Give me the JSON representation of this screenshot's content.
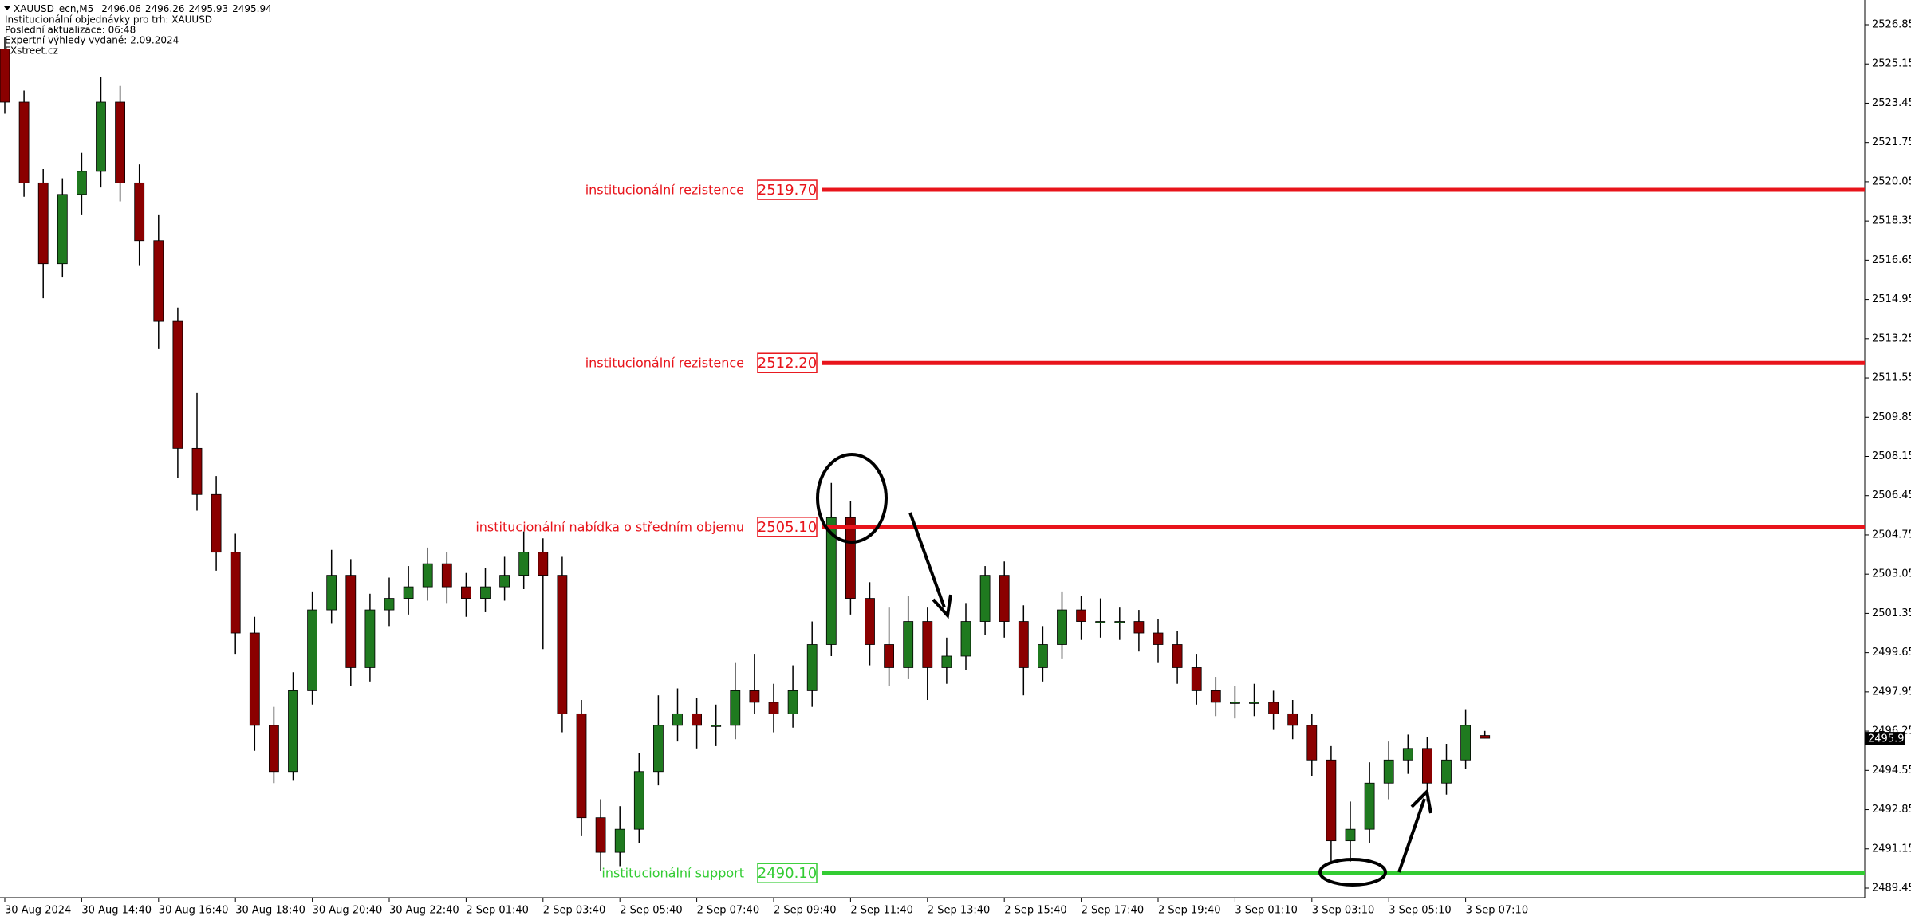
{
  "chart_data": {
    "type": "candlestick",
    "header": {
      "symbol": "XAUUSD_ecn,M5",
      "lines": [
        "Institucionální objednávky pro trh: XAUUSD",
        "Poslední aktualizace: 06:48",
        "Expertní výhledy vydané: 2.09.2024",
        "FXstreet.cz"
      ]
    },
    "ylim": [
      2489.45,
      2526.85
    ],
    "yticks": [
      2526.85,
      2525.15,
      2523.45,
      2521.75,
      2520.05,
      2518.35,
      2516.65,
      2514.95,
      2513.25,
      2511.55,
      2509.85,
      2508.15,
      2506.45,
      2504.75,
      2503.05,
      2501.35,
      2499.65,
      2497.95,
      2496.25,
      2494.55,
      2492.85,
      2491.15,
      2489.45
    ],
    "bull_color": "#1f7a1f",
    "bear_color": "#8b0000",
    "wick_color": "#000000",
    "categories": [
      "30 Aug 2024",
      null,
      null,
      null,
      "30 Aug 14:40",
      null,
      null,
      null,
      "30 Aug 16:40",
      null,
      null,
      null,
      "30 Aug 18:40",
      null,
      null,
      null,
      "30 Aug 20:40",
      null,
      null,
      null,
      "30 Aug 22:40",
      null,
      null,
      null,
      "2 Sep 01:40",
      null,
      null,
      null,
      "2 Sep 03:40",
      null,
      null,
      null,
      "2 Sep 05:40",
      null,
      null,
      null,
      "2 Sep 07:40",
      null,
      null,
      null,
      "2 Sep 09:40",
      null,
      null,
      null,
      "2 Sep 11:40",
      null,
      null,
      null,
      "2 Sep 13:40",
      null,
      null,
      null,
      "2 Sep 15:40",
      null,
      null,
      null,
      "2 Sep 17:40",
      null,
      null,
      null,
      "2 Sep 19:40",
      null,
      null,
      null,
      "3 Sep 01:10",
      null,
      null,
      null,
      "3 Sep 03:10",
      null,
      null,
      null,
      "3 Sep 05:10",
      null,
      null,
      null,
      "3 Sep 07:10",
      null
    ],
    "candles": [
      [
        2525.8,
        2526.3,
        2523.0,
        2523.5
      ],
      [
        2523.5,
        2524.0,
        2519.4,
        2520.0
      ],
      [
        2520.0,
        2520.6,
        2515.0,
        2516.5
      ],
      [
        2516.5,
        2520.2,
        2515.9,
        2519.5
      ],
      [
        2519.5,
        2521.3,
        2518.6,
        2520.5
      ],
      [
        2520.5,
        2524.6,
        2519.8,
        2523.5
      ],
      [
        2523.5,
        2524.2,
        2519.2,
        2520.0
      ],
      [
        2520.0,
        2520.8,
        2516.4,
        2517.5
      ],
      [
        2517.5,
        2518.6,
        2512.8,
        2514.0
      ],
      [
        2514.0,
        2514.6,
        2507.2,
        2508.5
      ],
      [
        2508.5,
        2510.9,
        2505.8,
        2506.5
      ],
      [
        2506.5,
        2507.3,
        2503.2,
        2504.0
      ],
      [
        2504.0,
        2504.8,
        2499.6,
        2500.5
      ],
      [
        2500.5,
        2501.2,
        2495.4,
        2496.5
      ],
      [
        2496.5,
        2497.3,
        2494.0,
        2494.5
      ],
      [
        2494.5,
        2498.8,
        2494.1,
        2498.0
      ],
      [
        2498.0,
        2502.3,
        2497.4,
        2501.5
      ],
      [
        2501.5,
        2504.1,
        2500.9,
        2503.0
      ],
      [
        2503.0,
        2503.7,
        2498.2,
        2499.0
      ],
      [
        2499.0,
        2502.2,
        2498.4,
        2501.5
      ],
      [
        2501.5,
        2502.9,
        2500.8,
        2502.0
      ],
      [
        2502.0,
        2503.4,
        2501.3,
        2502.5
      ],
      [
        2502.5,
        2504.2,
        2501.9,
        2503.5
      ],
      [
        2503.5,
        2504.0,
        2501.8,
        2502.5
      ],
      [
        2502.5,
        2503.1,
        2501.2,
        2502.0
      ],
      [
        2502.0,
        2503.3,
        2501.4,
        2502.5
      ],
      [
        2502.5,
        2503.8,
        2501.9,
        2503.0
      ],
      [
        2503.0,
        2504.9,
        2502.4,
        2504.0
      ],
      [
        2504.0,
        2504.6,
        2499.8,
        2503.0
      ],
      [
        2503.0,
        2503.8,
        2496.2,
        2497.0
      ],
      [
        2497.0,
        2497.6,
        2491.7,
        2492.5
      ],
      [
        2492.5,
        2493.3,
        2490.2,
        2491.0
      ],
      [
        2491.0,
        2493.0,
        2490.4,
        2492.0
      ],
      [
        2492.0,
        2495.3,
        2491.4,
        2494.5
      ],
      [
        2494.5,
        2497.8,
        2493.9,
        2496.5
      ],
      [
        2496.5,
        2498.1,
        2495.8,
        2497.0
      ],
      [
        2497.0,
        2497.7,
        2495.5,
        2496.5
      ],
      [
        2496.5,
        2497.4,
        2495.6,
        2496.5
      ],
      [
        2496.5,
        2499.2,
        2495.9,
        2498.0
      ],
      [
        2498.0,
        2499.6,
        2497.0,
        2497.5
      ],
      [
        2497.5,
        2498.3,
        2496.2,
        2497.0
      ],
      [
        2497.0,
        2499.1,
        2496.4,
        2498.0
      ],
      [
        2498.0,
        2501.0,
        2497.3,
        2500.0
      ],
      [
        2500.0,
        2507.0,
        2499.5,
        2505.5
      ],
      [
        2505.5,
        2506.2,
        2501.3,
        2502.0
      ],
      [
        2502.0,
        2502.7,
        2499.1,
        2500.0
      ],
      [
        2500.0,
        2501.6,
        2498.2,
        2499.0
      ],
      [
        2499.0,
        2502.1,
        2498.5,
        2501.0
      ],
      [
        2501.0,
        2501.6,
        2497.6,
        2499.0
      ],
      [
        2499.0,
        2500.3,
        2498.3,
        2499.5
      ],
      [
        2499.5,
        2501.8,
        2498.9,
        2501.0
      ],
      [
        2501.0,
        2503.4,
        2500.4,
        2503.0
      ],
      [
        2503.0,
        2503.6,
        2500.3,
        2501.0
      ],
      [
        2501.0,
        2501.7,
        2497.8,
        2499.0
      ],
      [
        2499.0,
        2500.8,
        2498.4,
        2500.0
      ],
      [
        2500.0,
        2502.3,
        2499.4,
        2501.5
      ],
      [
        2501.5,
        2502.1,
        2500.2,
        2501.0
      ],
      [
        2501.0,
        2502.0,
        2500.3,
        2501.0
      ],
      [
        2501.0,
        2501.6,
        2500.2,
        2501.0
      ],
      [
        2501.0,
        2501.5,
        2499.7,
        2500.5
      ],
      [
        2500.5,
        2501.1,
        2499.2,
        2500.0
      ],
      [
        2500.0,
        2500.6,
        2498.3,
        2499.0
      ],
      [
        2499.0,
        2499.6,
        2497.4,
        2498.0
      ],
      [
        2498.0,
        2498.6,
        2496.9,
        2497.5
      ],
      [
        2497.5,
        2498.2,
        2496.8,
        2497.5
      ],
      [
        2497.5,
        2498.3,
        2496.9,
        2497.5
      ],
      [
        2497.5,
        2498.0,
        2496.3,
        2497.0
      ],
      [
        2497.0,
        2497.6,
        2495.9,
        2496.5
      ],
      [
        2496.5,
        2497.0,
        2494.3,
        2495.0
      ],
      [
        2495.0,
        2495.6,
        2490.5,
        2491.5
      ],
      [
        2491.5,
        2493.2,
        2490.6,
        2492.0
      ],
      [
        2492.0,
        2494.9,
        2491.4,
        2494.0
      ],
      [
        2494.0,
        2495.8,
        2493.3,
        2495.0
      ],
      [
        2495.0,
        2496.1,
        2494.4,
        2495.5
      ],
      [
        2495.5,
        2496.0,
        2493.2,
        2494.0
      ],
      [
        2494.0,
        2495.7,
        2493.5,
        2495.0
      ],
      [
        2495.0,
        2497.2,
        2494.6,
        2496.5
      ],
      [
        2496.06,
        2496.26,
        2495.93,
        2495.94
      ]
    ],
    "levels": [
      {
        "name": "institucionální rezistence",
        "value": 2519.7,
        "value_label": "2519.70",
        "color": "#e8141b"
      },
      {
        "name": "institucionální rezistence",
        "value": 2512.2,
        "value_label": "2512.20",
        "color": "#e8141b"
      },
      {
        "name": "institucionální nabídka o středním objemu",
        "value": 2505.1,
        "value_label": "2505.10",
        "color": "#e8141b"
      },
      {
        "name": "institucionální support",
        "value": 2490.1,
        "value_label": "2490.10",
        "color": "#33cc33"
      }
    ]
  }
}
